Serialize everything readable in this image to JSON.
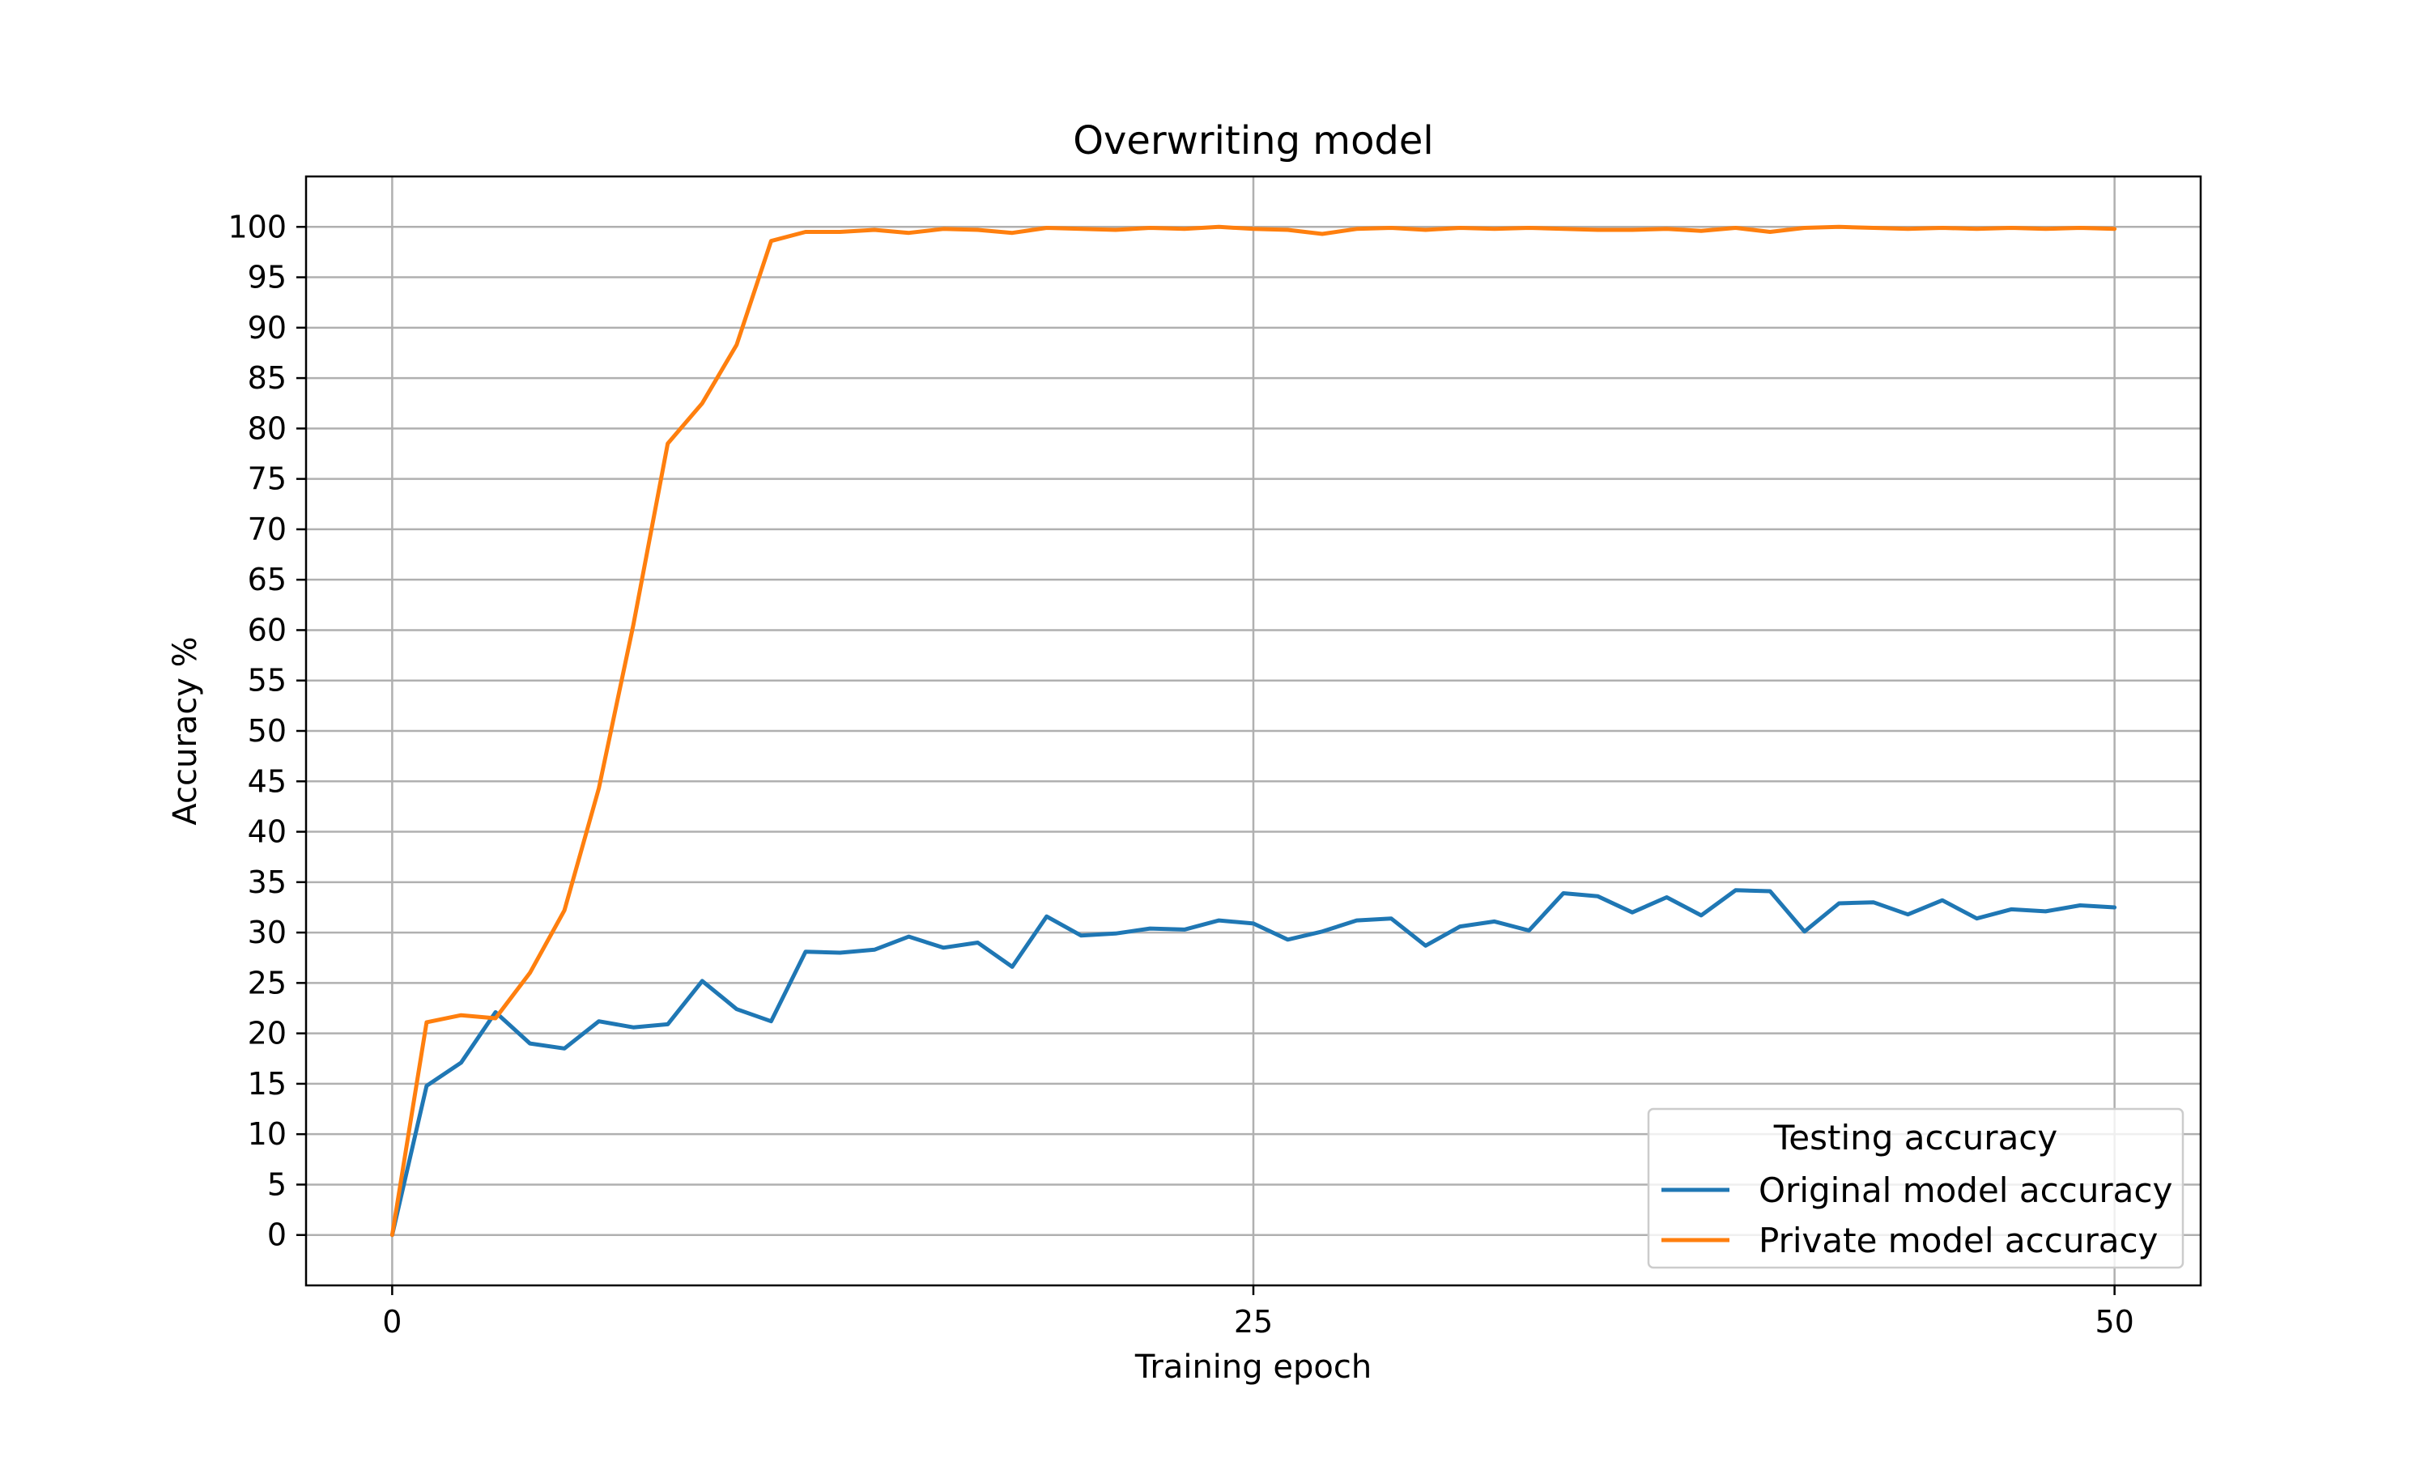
{
  "chart_data": {
    "type": "line",
    "title": "Overwriting model",
    "xlabel": "Training epoch",
    "ylabel": "Accuracy %",
    "xlim": [
      -2.5,
      52.5
    ],
    "ylim": [
      -5,
      105
    ],
    "xticks": [
      0,
      25,
      50
    ],
    "yticks": [
      0,
      5,
      10,
      15,
      20,
      25,
      30,
      35,
      40,
      45,
      50,
      55,
      60,
      65,
      70,
      75,
      80,
      85,
      90,
      95,
      100
    ],
    "grid": true,
    "legend": {
      "title": "Testing accuracy",
      "placement": "lower-right"
    },
    "x": [
      0,
      1,
      2,
      3,
      4,
      5,
      6,
      7,
      8,
      9,
      10,
      11,
      12,
      13,
      14,
      15,
      16,
      17,
      18,
      19,
      20,
      21,
      22,
      23,
      24,
      25,
      26,
      27,
      28,
      29,
      30,
      31,
      32,
      33,
      34,
      35,
      36,
      37,
      38,
      39,
      40,
      41,
      42,
      43,
      44,
      45,
      46,
      47,
      48,
      49,
      50
    ],
    "series": [
      {
        "name": "Original model accuracy",
        "color": "#1f77b4",
        "values": [
          0,
          14.8,
          17.1,
          22.1,
          19.0,
          18.5,
          21.2,
          20.6,
          20.9,
          25.2,
          22.4,
          21.2,
          28.1,
          28.0,
          28.3,
          29.6,
          28.5,
          29.0,
          26.6,
          31.6,
          29.7,
          29.9,
          30.4,
          30.3,
          31.2,
          30.9,
          29.3,
          30.1,
          31.2,
          31.4,
          28.7,
          30.6,
          31.1,
          30.2,
          33.9,
          33.6,
          32.0,
          33.5,
          31.7,
          34.2,
          34.1,
          30.1,
          32.9,
          33.0,
          31.8,
          33.2,
          31.4,
          32.3,
          32.1,
          32.7,
          32.5
        ]
      },
      {
        "name": "Private model accuracy",
        "color": "#ff7f0e",
        "values": [
          0,
          21.1,
          21.8,
          21.5,
          26.0,
          32.2,
          44.3,
          60.5,
          78.5,
          82.5,
          88.3,
          98.6,
          99.5,
          99.5,
          99.7,
          99.4,
          99.8,
          99.7,
          99.4,
          99.9,
          99.8,
          99.7,
          99.9,
          99.8,
          100.0,
          99.8,
          99.7,
          99.3,
          99.8,
          99.9,
          99.7,
          99.9,
          99.8,
          99.9,
          99.8,
          99.7,
          99.7,
          99.8,
          99.6,
          99.9,
          99.5,
          99.9,
          100.0,
          99.9,
          99.8,
          99.9,
          99.8,
          99.9,
          99.8,
          99.9,
          99.8
        ]
      }
    ]
  }
}
